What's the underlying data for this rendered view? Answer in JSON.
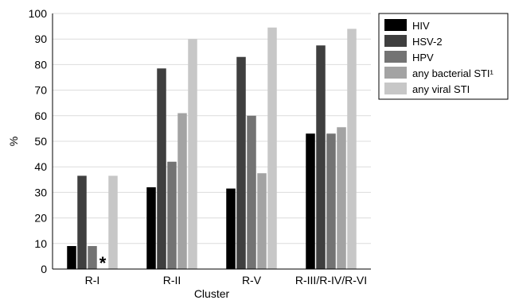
{
  "chart_data": {
    "type": "bar",
    "xlabel": "Cluster",
    "ylabel": "%",
    "ylim": [
      0,
      100
    ],
    "yticks": [
      0,
      10,
      20,
      30,
      40,
      50,
      60,
      70,
      80,
      90,
      100
    ],
    "grid": "horizontal",
    "legend_position": "top-right",
    "categories": [
      "R-I",
      "R-II",
      "R-V",
      "R-III/R-IV/R-VI"
    ],
    "series": [
      {
        "name": "HIV",
        "color": "#000000",
        "values": [
          9,
          32,
          31.5,
          53
        ]
      },
      {
        "name": "HSV-2",
        "color": "#3f3f3f",
        "values": [
          36.5,
          78.5,
          83,
          87.5
        ]
      },
      {
        "name": "HPV",
        "color": "#737373",
        "values": [
          9,
          42,
          60,
          53
        ]
      },
      {
        "name": "any bacterial STI¹",
        "color": "#a3a3a3",
        "values": [
          0,
          61,
          37.5,
          55.5
        ]
      },
      {
        "name": "any viral STI",
        "color": "#c7c7c7",
        "values": [
          36.5,
          90,
          94.5,
          94
        ]
      }
    ],
    "annotations": [
      {
        "text": "*",
        "category": "R-I",
        "series": "any bacterial STI¹"
      }
    ]
  }
}
